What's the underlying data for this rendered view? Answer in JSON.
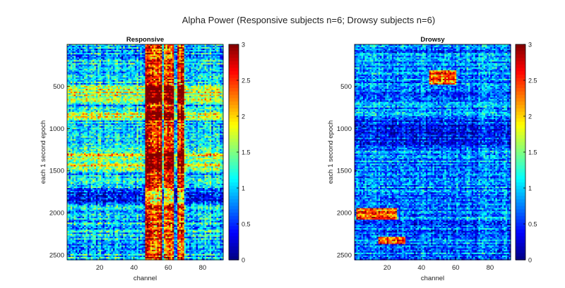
{
  "figure": {
    "title": "Alpha Power (Responsive subjects n=6; Drowsy subjects n=6)"
  },
  "chart_data": [
    {
      "type": "heatmap",
      "title": "Responsive",
      "xlabel": "channel",
      "ylabel": "each 1 second epoch",
      "xlim": [
        1,
        92
      ],
      "ylim": [
        1,
        2560
      ],
      "y_direction": "reversed",
      "xticks": [
        20,
        40,
        60,
        80
      ],
      "yticks": [
        500,
        1000,
        1500,
        2000,
        2500
      ],
      "colormap": "jet",
      "clim": [
        0,
        3
      ],
      "colorbar_ticks": [
        "0",
        "0.5",
        "1",
        "1.5",
        "2",
        "2.5",
        "3"
      ],
      "high_power_channel_bands": [
        [
          47,
          56
        ],
        [
          58,
          63
        ],
        [
          66,
          69
        ]
      ],
      "high_power_epoch_bands": [
        [
          500,
          700
        ],
        [
          800,
          900
        ],
        [
          1300,
          1500
        ]
      ],
      "low_power_epoch_bands": [
        [
          1700,
          1900
        ]
      ]
    },
    {
      "type": "heatmap",
      "title": "Drowsy",
      "xlabel": "channel",
      "ylabel": "each 1 second epoch",
      "xlim": [
        1,
        92
      ],
      "ylim": [
        1,
        2560
      ],
      "y_direction": "reversed",
      "xticks": [
        20,
        40,
        60,
        80
      ],
      "yticks": [
        500,
        1000,
        1500,
        2000,
        2500
      ],
      "colormap": "jet",
      "clim": [
        0,
        3
      ],
      "colorbar_ticks": [
        "0",
        "0.5",
        "1",
        "1.5",
        "2",
        "2.5",
        "3"
      ],
      "high_power_regions": [
        {
          "channels": [
            45,
            60
          ],
          "epochs": [
            300,
            480
          ]
        },
        {
          "channels": [
            2,
            25
          ],
          "epochs": [
            1950,
            2080
          ]
        },
        {
          "channels": [
            15,
            30
          ],
          "epochs": [
            2280,
            2380
          ]
        }
      ],
      "low_power_epoch_bands": [
        [
          900,
          1200
        ]
      ]
    }
  ]
}
